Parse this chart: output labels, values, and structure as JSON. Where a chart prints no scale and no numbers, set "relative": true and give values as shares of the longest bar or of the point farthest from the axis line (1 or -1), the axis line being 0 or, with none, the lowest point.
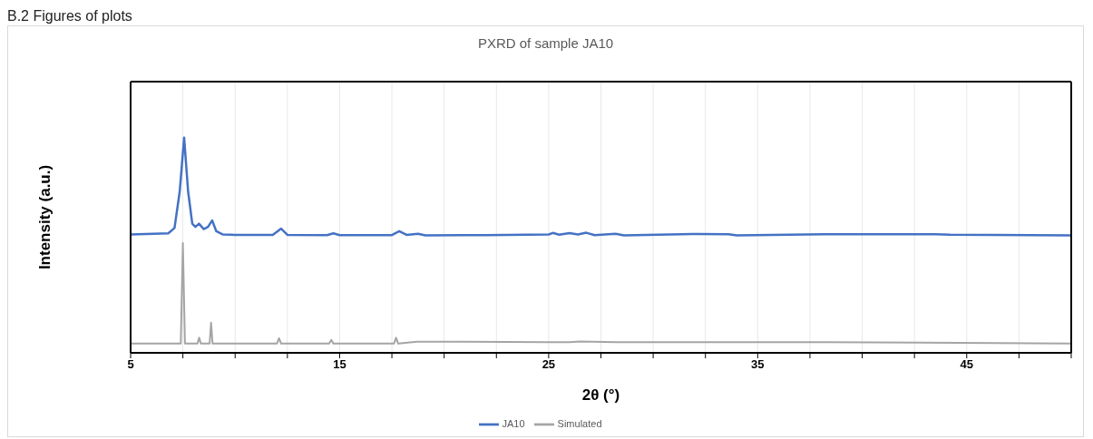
{
  "chart_data": {
    "type": "line",
    "title": "PXRD of sample JA10",
    "xlabel": "2θ (°)",
    "ylabel": "Intensity (a.u.)",
    "annotations": [
      "B.2 Figures of plots"
    ],
    "relative": true,
    "xlim": [
      5,
      50
    ],
    "xticks": [
      5,
      {
        "value": 7.5,
        "label": null
      },
      {
        "value": 10,
        "label": null
      },
      {
        "value": 12.5,
        "label": null
      },
      15,
      {
        "value": 17.5,
        "label": null
      },
      {
        "value": 20,
        "label": null
      },
      {
        "value": 22.5,
        "label": null
      },
      25,
      {
        "value": 27.5,
        "label": null
      },
      {
        "value": 30,
        "label": null
      },
      {
        "value": 32.5,
        "label": null
      },
      35,
      {
        "value": 37.5,
        "label": null
      },
      {
        "value": 40,
        "label": null
      },
      {
        "value": 42.5,
        "label": null
      },
      45,
      {
        "value": 47.5,
        "label": null
      },
      {
        "value": 50,
        "label": null
      }
    ],
    "grid": "x",
    "legend": "bottom",
    "marker": "none",
    "line_style": "solid",
    "series": [
      {
        "name": "JA10",
        "color": "#4472c4",
        "x": [
          5,
          6.8,
          7.1,
          7.35,
          7.56,
          7.75,
          7.95,
          8.1,
          8.27,
          8.5,
          8.7,
          8.9,
          9.1,
          9.4,
          10,
          11.8,
          12.2,
          12.5,
          14.4,
          14.7,
          15,
          17.5,
          17.85,
          18.2,
          18.75,
          19.1,
          22,
          25,
          25.2,
          25.5,
          26,
          26.4,
          26.8,
          27.2,
          28.2,
          28.6,
          32.1,
          33.6,
          34,
          38.2,
          41.3,
          43.5,
          44.2,
          50
        ],
        "values": [
          0.55,
          0.555,
          0.58,
          0.75,
          1.0,
          0.75,
          0.6,
          0.585,
          0.6,
          0.575,
          0.585,
          0.615,
          0.565,
          0.55,
          0.548,
          0.548,
          0.577,
          0.548,
          0.547,
          0.555,
          0.547,
          0.547,
          0.565,
          0.548,
          0.553,
          0.546,
          0.547,
          0.55,
          0.557,
          0.549,
          0.556,
          0.55,
          0.558,
          0.547,
          0.553,
          0.546,
          0.552,
          0.551,
          0.546,
          0.551,
          0.551,
          0.551,
          0.549,
          0.546
        ]
      },
      {
        "name": "Simulated",
        "color": "#a5a5a5",
        "x": [
          5,
          7.4,
          7.5,
          7.6,
          8.2,
          8.28,
          8.36,
          8.78,
          8.85,
          8.92,
          12,
          12.1,
          12.2,
          14.5,
          14.6,
          14.7,
          17.6,
          17.7,
          17.8,
          18.7,
          25,
          26,
          26.5,
          28.2,
          38.2,
          50
        ],
        "values": [
          0.043,
          0.043,
          0.51,
          0.043,
          0.043,
          0.07,
          0.043,
          0.043,
          0.14,
          0.043,
          0.043,
          0.068,
          0.043,
          0.043,
          0.06,
          0.043,
          0.043,
          0.07,
          0.043,
          0.052,
          0.05,
          0.05,
          0.053,
          0.05,
          0.05,
          0.043
        ]
      }
    ]
  }
}
